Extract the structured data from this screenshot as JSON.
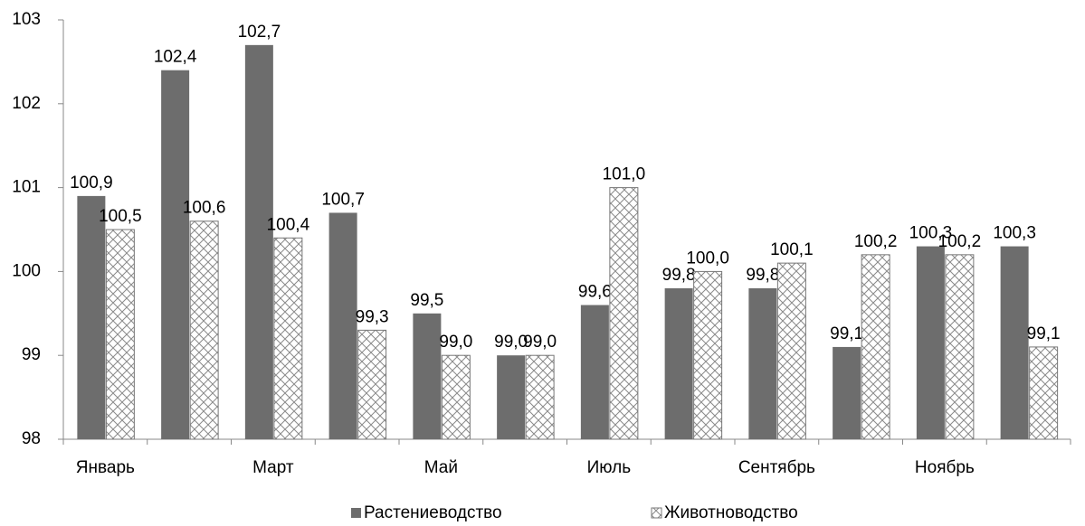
{
  "chart_data": {
    "type": "bar",
    "categories": [
      "Январь",
      null,
      "Март",
      null,
      "Май",
      null,
      "Июль",
      null,
      "Сентябрь",
      null,
      "Ноябрь",
      null
    ],
    "series": [
      {
        "name": "Растениеводство",
        "color": "#6d6d6d",
        "pattern": "solid",
        "values": [
          100.9,
          102.4,
          102.7,
          100.7,
          99.5,
          99.0,
          99.6,
          99.8,
          99.8,
          99.1,
          100.3,
          100.3
        ],
        "value_labels": [
          "100,9",
          "102,4",
          "102,7",
          "100,7",
          "99,5",
          "99,0",
          "99,6",
          "99,8",
          "99,8",
          "99,1",
          "100,3",
          "100,3"
        ]
      },
      {
        "name": "Животноводство",
        "color": "#777777",
        "pattern": "crosshatch",
        "values": [
          100.5,
          100.6,
          100.4,
          99.3,
          99.0,
          99.0,
          101.0,
          100.0,
          100.1,
          100.2,
          100.2,
          99.1
        ],
        "value_labels": [
          "100,5",
          "100,6",
          "100,4",
          "99,3",
          "99,0",
          "99,0",
          "101,0",
          "100,0",
          "100,1",
          "100,2",
          "100,2",
          "99,1"
        ]
      }
    ],
    "ylim": [
      98,
      103
    ],
    "yticks": [
      98,
      99,
      100,
      101,
      102,
      103
    ],
    "grid": false,
    "legend": "bottom"
  }
}
